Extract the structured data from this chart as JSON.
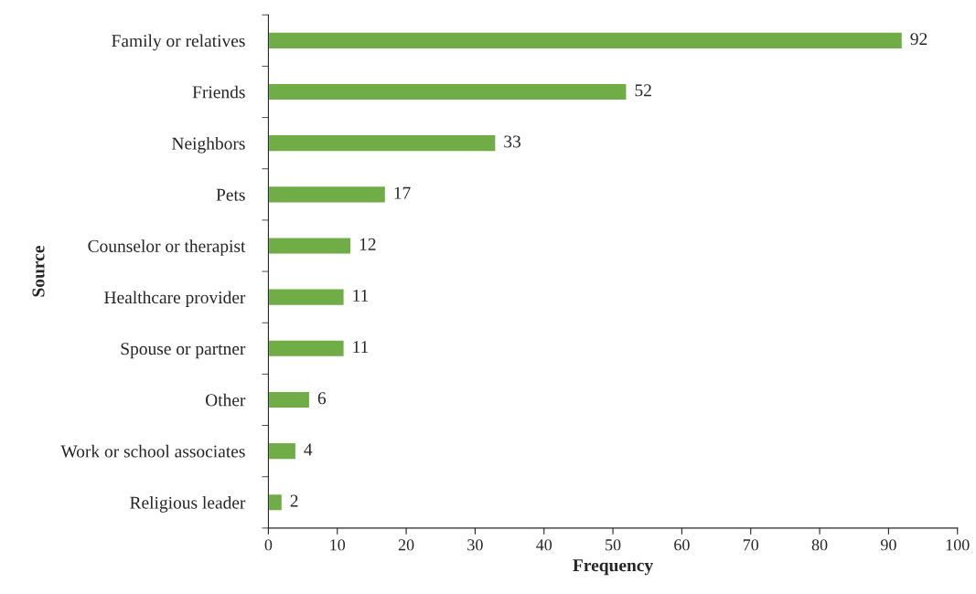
{
  "chart_data": {
    "type": "bar",
    "orientation": "horizontal",
    "xlabel": "Frequency",
    "ylabel": "Source",
    "categories": [
      "Family or relatives",
      "Friends",
      "Neighbors",
      "Pets",
      "Counselor or therapist",
      "Healthcare provider",
      "Spouse or partner",
      "Other",
      "Work or school associates",
      "Religious leader"
    ],
    "values": [
      92,
      52,
      33,
      17,
      12,
      11,
      11,
      6,
      4,
      2
    ],
    "color": "#70ad47",
    "xlim": [
      0,
      100
    ],
    "xticks": [
      0,
      10,
      20,
      30,
      40,
      50,
      60,
      70,
      80,
      90,
      100
    ],
    "data_labels": true
  }
}
